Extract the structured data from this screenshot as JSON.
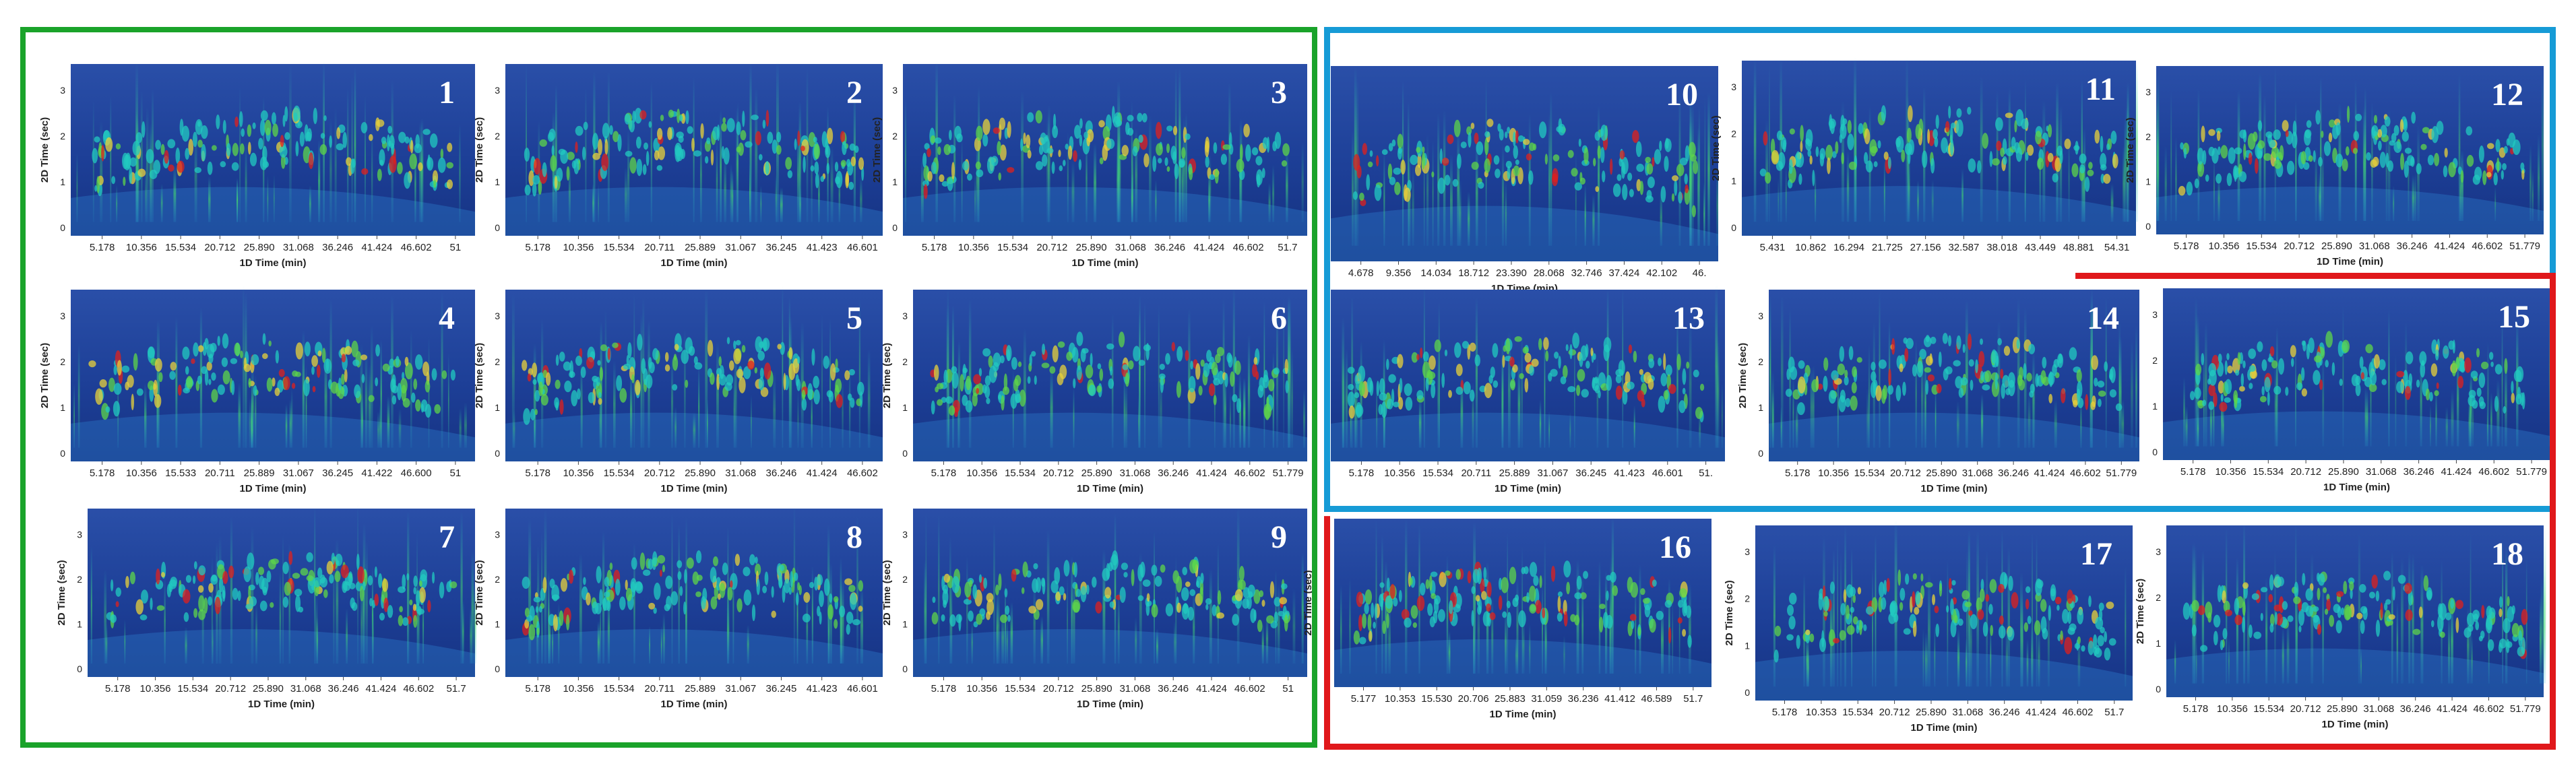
{
  "colors": {
    "group_green": "#1aa32a",
    "group_blue": "#169bd6",
    "group_red": "#e0181b",
    "plot_background": "#1b3b8e"
  },
  "chart_data": [
    {
      "type": "heatmap",
      "panel": "1",
      "xlabel": "1D Time (min)",
      "ylabel": "2D Time (sec)",
      "x_ticks": [
        "5.178",
        "10.356",
        "15.534",
        "20.712",
        "25.890",
        "31.068",
        "36.246",
        "41.424",
        "46.602",
        "51"
      ],
      "y_ticks": [
        "0",
        "1",
        "2",
        "3"
      ]
    },
    {
      "type": "heatmap",
      "panel": "2",
      "xlabel": "1D Time (min)",
      "ylabel": "2D Time (sec)",
      "x_ticks": [
        "5.178",
        "10.356",
        "15.534",
        "20.711",
        "25.889",
        "31.067",
        "36.245",
        "41.423",
        "46.601"
      ],
      "y_ticks": [
        "0",
        "1",
        "2",
        "3"
      ]
    },
    {
      "type": "heatmap",
      "panel": "3",
      "xlabel": "1D Time (min)",
      "ylabel": "2D Time (sec)",
      "x_ticks": [
        "5.178",
        "10.356",
        "15.534",
        "20.712",
        "25.890",
        "31.068",
        "36.246",
        "41.424",
        "46.602",
        "51.7"
      ],
      "y_ticks": [
        "0",
        "1",
        "2",
        "3"
      ]
    },
    {
      "type": "heatmap",
      "panel": "4",
      "xlabel": "1D Time (min)",
      "ylabel": "2D Time (sec)",
      "x_ticks": [
        "5.178",
        "10.356",
        "15.533",
        "20.711",
        "25.889",
        "31.067",
        "36.245",
        "41.422",
        "46.600",
        "51"
      ],
      "y_ticks": [
        "0",
        "1",
        "2",
        "3"
      ]
    },
    {
      "type": "heatmap",
      "panel": "5",
      "xlabel": "1D Time (min)",
      "ylabel": "2D Time (sec)",
      "x_ticks": [
        "5.178",
        "10.356",
        "15.534",
        "20.712",
        "25.890",
        "31.068",
        "36.246",
        "41.424",
        "46.602"
      ],
      "y_ticks": [
        "0",
        "1",
        "2",
        "3"
      ]
    },
    {
      "type": "heatmap",
      "panel": "6",
      "xlabel": "1D Time (min)",
      "ylabel": "2D Time (sec)",
      "x_ticks": [
        "5.178",
        "10.356",
        "15.534",
        "20.712",
        "25.890",
        "31.068",
        "36.246",
        "41.424",
        "46.602",
        "51.779"
      ],
      "y_ticks": [
        "0",
        "1",
        "2",
        "3"
      ]
    },
    {
      "type": "heatmap",
      "panel": "7",
      "xlabel": "1D Time (min)",
      "ylabel": "2D Time (sec)",
      "x_ticks": [
        "5.178",
        "10.356",
        "15.534",
        "20.712",
        "25.890",
        "31.068",
        "36.246",
        "41.424",
        "46.602",
        "51.7"
      ],
      "y_ticks": [
        "0",
        "1",
        "2",
        "3"
      ]
    },
    {
      "type": "heatmap",
      "panel": "8",
      "xlabel": "1D Time (min)",
      "ylabel": "2D Time (sec)",
      "x_ticks": [
        "5.178",
        "10.356",
        "15.534",
        "20.711",
        "25.889",
        "31.067",
        "36.245",
        "41.423",
        "46.601"
      ],
      "y_ticks": [
        "0",
        "1",
        "2",
        "3"
      ]
    },
    {
      "type": "heatmap",
      "panel": "9",
      "xlabel": "1D Time (min)",
      "ylabel": "2D Time (sec)",
      "x_ticks": [
        "5.178",
        "10.356",
        "15.534",
        "20.712",
        "25.890",
        "31.068",
        "36.246",
        "41.424",
        "46.602",
        "51"
      ],
      "y_ticks": [
        "0",
        "1",
        "2",
        "3"
      ]
    },
    {
      "type": "heatmap",
      "panel": "10",
      "xlabel": "1D Time (min)",
      "ylabel": "",
      "x_ticks": [
        "4.678",
        "9.356",
        "14.034",
        "18.712",
        "23.390",
        "28.068",
        "32.746",
        "37.424",
        "42.102",
        "46."
      ],
      "y_ticks": []
    },
    {
      "type": "heatmap",
      "panel": "11",
      "xlabel": "",
      "ylabel": "2D Time (sec)",
      "x_ticks": [
        "5.431",
        "10.862",
        "16.294",
        "21.725",
        "27.156",
        "32.587",
        "38.018",
        "43.449",
        "48.881",
        "54.31"
      ],
      "y_ticks": [
        "0",
        "1",
        "2",
        "3"
      ]
    },
    {
      "type": "heatmap",
      "panel": "12",
      "xlabel": "1D Time (min)",
      "ylabel": "2D Time (sec)",
      "x_ticks": [
        "5.178",
        "10.356",
        "15.534",
        "20.712",
        "25.890",
        "31.068",
        "36.246",
        "41.424",
        "46.602",
        "51.779"
      ],
      "y_ticks": [
        "0",
        "1",
        "2",
        "3"
      ]
    },
    {
      "type": "heatmap",
      "panel": "13",
      "xlabel": "1D Time (min)",
      "ylabel": "",
      "x_ticks": [
        "5.178",
        "10.356",
        "15.534",
        "20.711",
        "25.889",
        "31.067",
        "36.245",
        "41.423",
        "46.601",
        "51."
      ],
      "y_ticks": []
    },
    {
      "type": "heatmap",
      "panel": "14",
      "xlabel": "1D Time (min)",
      "ylabel": "2D Time (sec)",
      "x_ticks": [
        "5.178",
        "10.356",
        "15.534",
        "20.712",
        "25.890",
        "31.068",
        "36.246",
        "41.424",
        "46.602",
        "51.779"
      ],
      "y_ticks": [
        "0",
        "1",
        "2",
        "3"
      ]
    },
    {
      "type": "heatmap",
      "panel": "15",
      "xlabel": "1D Time (min)",
      "ylabel": "",
      "x_ticks": [
        "5.178",
        "10.356",
        "15.534",
        "20.712",
        "25.890",
        "31.068",
        "36.246",
        "41.424",
        "46.602",
        "51.779"
      ],
      "y_ticks": [
        "0",
        "1",
        "2",
        "3"
      ]
    },
    {
      "type": "heatmap",
      "panel": "16",
      "xlabel": "1D Time (min)",
      "ylabel": "2D Time (sec)",
      "x_ticks": [
        "5.177",
        "10.353",
        "15.530",
        "20.706",
        "25.883",
        "31.059",
        "36.236",
        "41.412",
        "46.589",
        "51.7"
      ],
      "y_ticks": []
    },
    {
      "type": "heatmap",
      "panel": "17",
      "xlabel": "1D Time (min)",
      "ylabel": "2D Time (sec)",
      "x_ticks": [
        "5.178",
        "10.353",
        "15.534",
        "20.712",
        "25.890",
        "31.068",
        "36.246",
        "41.424",
        "46.602",
        "51.7"
      ],
      "y_ticks": [
        "0",
        "1",
        "2",
        "3"
      ]
    },
    {
      "type": "heatmap",
      "panel": "18",
      "xlabel": "1D Time (min)",
      "ylabel": "2D Time (sec)",
      "x_ticks": [
        "5.178",
        "10.356",
        "15.534",
        "20.712",
        "25.890",
        "31.068",
        "36.246",
        "41.424",
        "46.602",
        "51.779"
      ],
      "y_ticks": [
        "0",
        "1",
        "2",
        "3"
      ]
    }
  ]
}
